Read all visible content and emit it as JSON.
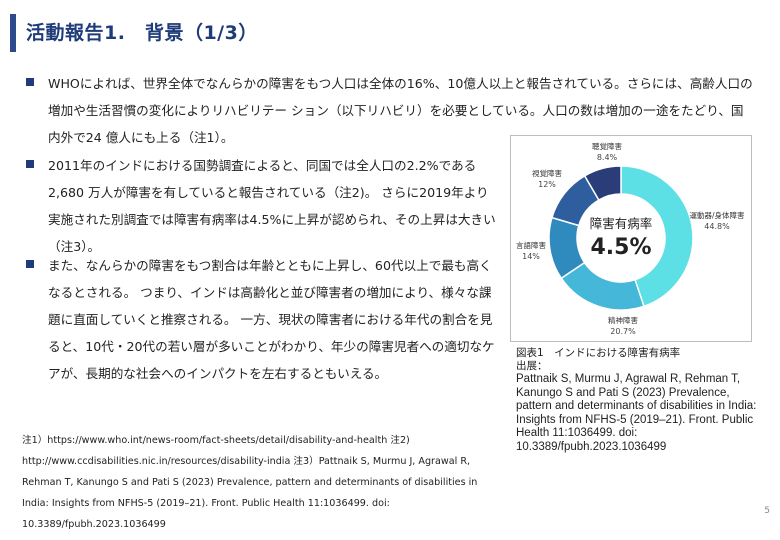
{
  "header": {
    "title": "活動報告1.　背景（1/3）"
  },
  "bullets": [
    {
      "text": "WHOによれば、世界全体でなんらかの障害をもつ人口は全体の16%、10億人以上と報告されている。さらには、高齢人口の増加や生活習慣の変化によりリハビリテー ション（以下リハビリ）を必要としている。人口の数は増加の一途をたどり、国内外で24 億人にも上る（注1）。"
    },
    {
      "text": "2011年のインドにおける国勢調査によると、同国では全人口の2.2%である2,680 万人が障害を有していると報告されている（注2)。 さらに2019年より実施された別調査では障害有病率は4.5%に上昇が認められ、その上昇は大きい（注3）。"
    },
    {
      "text": "また、なんらかの障害をもつ割合は年齢とともに上昇し、60代以上で最も高くなるとされる。 つまり、インドは高齢化と並び障害者の増加により、様々な課題に直面していくと推察される。 一方、現状の障害者における年代の割合を見ると、10代・20代の若い層が多いことがわかり、年少の障害児者への適切なケアが、長期的な社会へのインパクトを左右するともいえる。"
    }
  ],
  "chart_data": {
    "type": "pie",
    "center_label": "障害有病率",
    "center_value": "4.5%",
    "categories": [
      "運動器/身体障害",
      "精神障害",
      "言語障害",
      "視覚障害",
      "聴覚障害"
    ],
    "values": [
      44.8,
      20.7,
      14,
      12,
      8.4
    ],
    "value_labels": [
      "44.8%",
      "20.7%",
      "14%",
      "12%",
      "8.4%"
    ],
    "colors": [
      "#5ddfe6",
      "#45b7d9",
      "#2f8bbd",
      "#2e5e9e",
      "#2b3d78"
    ]
  },
  "caption": {
    "title": "図表1　インドにおける障害有病率",
    "source_label": "出展：",
    "source_text": "Pattnaik S, Murmu J, Agrawal R, Rehman T, Kanungo S and Pati S (2023) Prevalence, pattern and determinants of disabilities in India: Insights from NFHS-5 (2019–21). Front. Public Health 11:1036499. doi: 10.3389/fpubh.2023.1036499"
  },
  "footnote": "注1）https://www.who.int/news-room/fact-sheets/detail/disability-and-health 注2) http://www.ccdisabilities.nic.in/resources/disability-india 注3）Pattnaik S, Murmu J, Agrawal R, Rehman T, Kanungo S and Pati S (2023) Prevalence, pattern and determinants of disabilities in India: Insights from NFHS-5 (2019–21). Front. Public Health 11:1036499. doi: 10.3389/fpubh.2023.1036499",
  "page_number": "5"
}
